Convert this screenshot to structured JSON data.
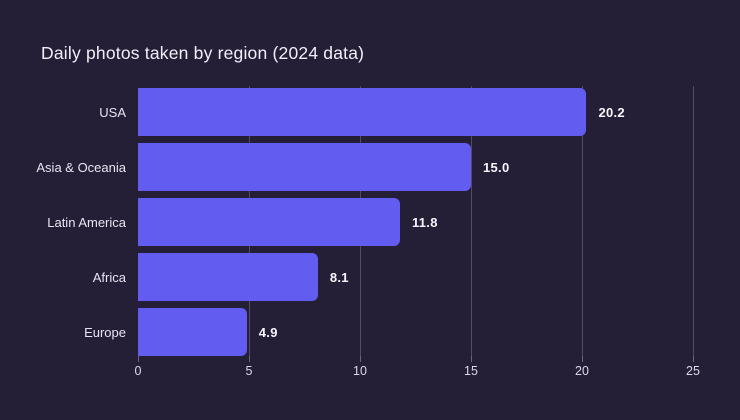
{
  "chart_data": {
    "type": "bar",
    "orientation": "horizontal",
    "title": "Daily photos taken by region (2024 data)",
    "categories": [
      "USA",
      "Asia & Oceania",
      "Latin America",
      "Africa",
      "Europe"
    ],
    "values": [
      20.2,
      15.0,
      11.8,
      8.1,
      4.9
    ],
    "value_labels": [
      "20.2",
      "15.0",
      "11.8",
      "8.1",
      "4.9"
    ],
    "xlabel": "",
    "ylabel": "",
    "xlim": [
      0,
      25
    ],
    "xticks": [
      0,
      5,
      10,
      15,
      20,
      25
    ],
    "xtick_labels": [
      "0",
      "5",
      "10",
      "15",
      "20",
      "25"
    ],
    "grid": true,
    "legend": false,
    "colors": {
      "background": "#241f37",
      "bar": "#635cf0",
      "title_text": "#f2eff8",
      "category_text": "#e8e4f2",
      "value_text": "#f8f6fc",
      "tick_text": "#dcd8e8",
      "gridline": "rgba(240,237,248,0.22)"
    }
  }
}
